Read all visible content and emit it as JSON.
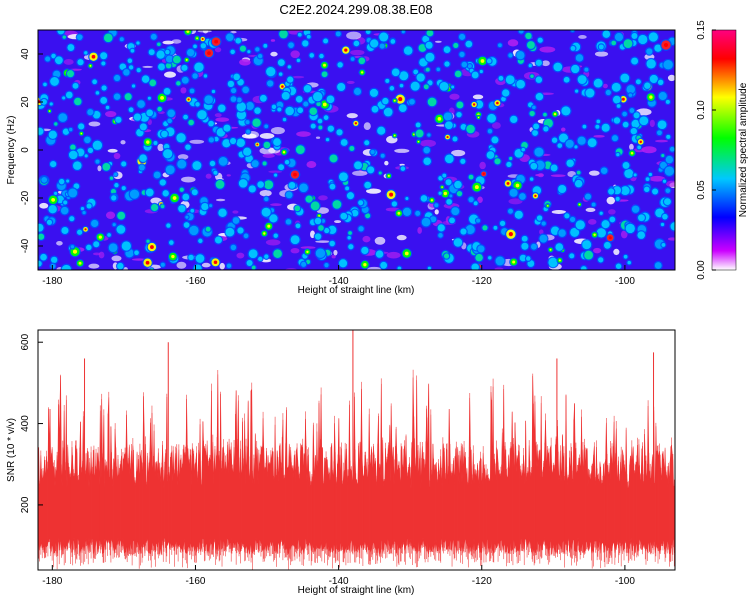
{
  "title": "C2E2.2024.299.08.38.E08",
  "chart_data": [
    {
      "type": "heatmap",
      "xlabel": "Height of straight line (km)",
      "ylabel": "Frequency (Hz)",
      "xlim": [
        -182,
        -93
      ],
      "ylim": [
        -50,
        50
      ],
      "xticks": [
        -180,
        -160,
        -140,
        -120,
        -100
      ],
      "yticks": [
        -40,
        -20,
        0,
        20,
        40
      ],
      "colorbar": {
        "label": "Normalized spectral amplitude",
        "range": [
          0.0,
          0.15
        ],
        "ticks": [
          "0.00",
          "0.05",
          "0.10",
          "0.15"
        ],
        "colors": [
          "#ffffff",
          "#cc00ff",
          "#0000ff",
          "#00c8ff",
          "#00ff00",
          "#ffff00",
          "#ff0000",
          "#ff0080"
        ]
      },
      "background_color": "#3a10f0",
      "grid": false
    },
    {
      "type": "line",
      "xlabel": "Height of straight line (km)",
      "ylabel": "SNR (10 * v/v)",
      "xlim": [
        -182,
        -93
      ],
      "ylim": [
        40,
        630
      ],
      "xticks": [
        -180,
        -160,
        -140,
        -120,
        -100
      ],
      "yticks": [
        200,
        400,
        600
      ],
      "series_color": "#ee3333",
      "baseline_range": [
        80,
        280
      ],
      "notable_peaks": [
        {
          "x": -175.5,
          "y": 560
        },
        {
          "x": -163.8,
          "y": 600
        },
        {
          "x": -138.0,
          "y": 630
        },
        {
          "x": -109.5,
          "y": 560
        },
        {
          "x": -96.0,
          "y": 575
        }
      ],
      "grid": false
    }
  ]
}
